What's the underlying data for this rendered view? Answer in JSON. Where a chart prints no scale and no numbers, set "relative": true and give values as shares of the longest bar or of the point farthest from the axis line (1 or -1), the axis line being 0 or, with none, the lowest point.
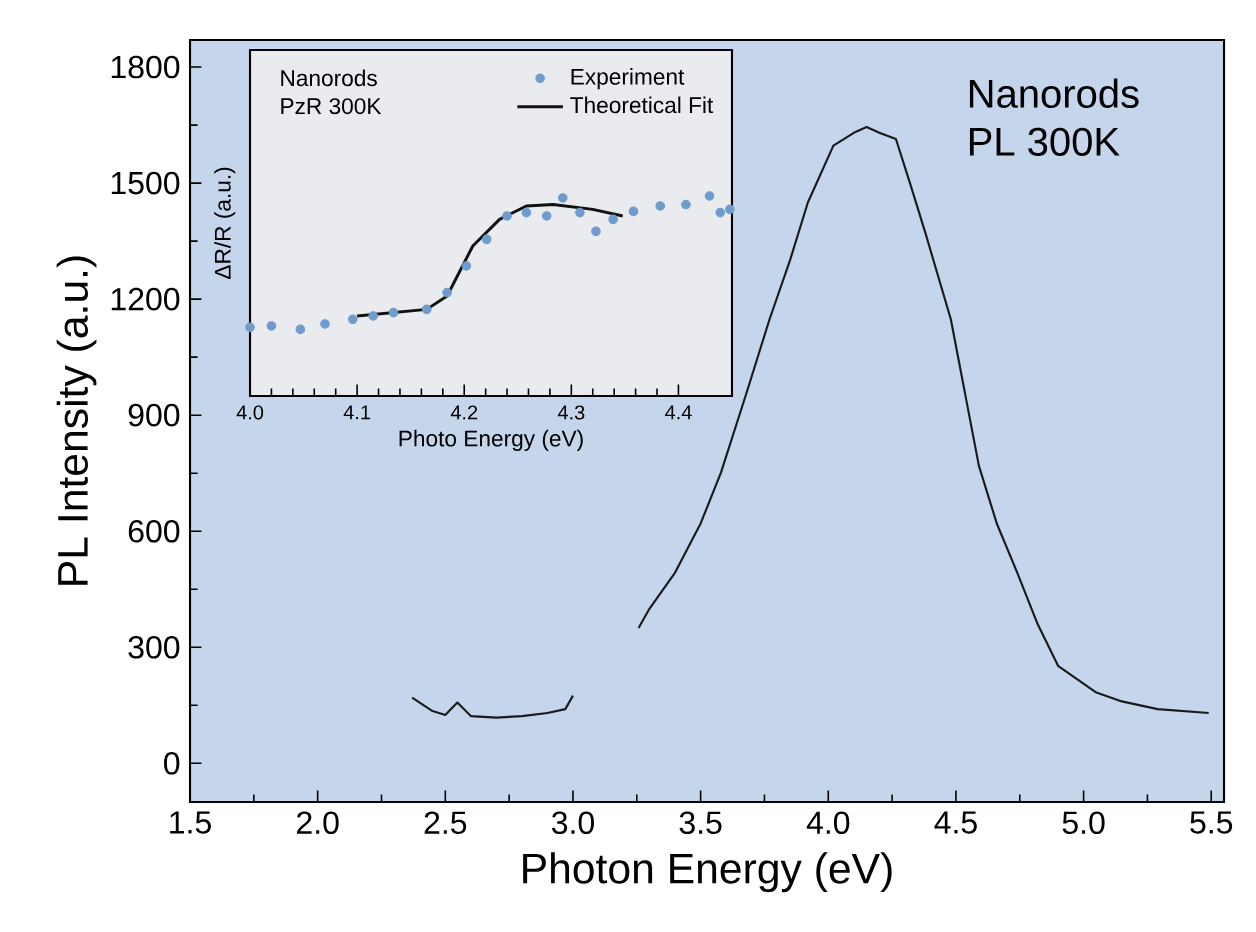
{
  "chart_data": [
    {
      "type": "line",
      "xlabel": "Photon Energy (eV)",
      "ylabel": "PL Intensity (a.u.)",
      "xlim": [
        1.5,
        5.55
      ],
      "ylim": [
        -100,
        1870
      ],
      "xticks": [
        {
          "value": 1.5,
          "label": "1.5"
        },
        {
          "value": 2,
          "label": "2.0"
        },
        {
          "value": 2.5,
          "label": "2.5"
        },
        {
          "value": 3,
          "label": "3.0"
        },
        {
          "value": 3.5,
          "label": "3.5"
        },
        {
          "value": 4,
          "label": "4.0"
        },
        {
          "value": 4.5,
          "label": "4.5"
        },
        {
          "value": 5,
          "label": "5.0"
        },
        {
          "value": 5.5,
          "label": "5.5"
        }
      ],
      "yticks": [
        0,
        300,
        600,
        900,
        1200,
        1500,
        1800
      ],
      "annotations": [
        "Nanorods",
        "PL 300K"
      ],
      "series": [
        {
          "color": "#1a1a1a",
          "x": [
            2.37,
            2.45,
            2.5,
            2.547,
            2.6,
            2.7,
            2.8,
            2.9,
            2.97,
            3.0,
            3.13,
            3.257,
            3.3,
            3.4,
            3.5,
            3.58,
            3.68,
            3.77,
            3.85,
            3.92,
            4.02,
            4.1,
            4.15,
            4.2,
            4.265,
            4.32,
            4.38,
            4.48,
            4.59,
            4.66,
            4.74,
            4.82,
            4.9,
            5.05,
            5.15,
            5.29,
            5.49
          ],
          "values": [
            170,
            135,
            125,
            157,
            122,
            118,
            122,
            130,
            140,
            175,
            null,
            350,
            400,
            493,
            620,
            752,
            958,
            1148,
            1300,
            1450,
            1597,
            1630,
            1645,
            1630,
            1614,
            1500,
            1372,
            1148,
            769,
            620,
            493,
            360,
            252,
            183,
            160,
            140,
            130
          ]
        }
      ]
    },
    {
      "type": "scatter",
      "xlabel": "Photo Energy (eV)",
      "ylabel": "ΔR/R (a.u.)",
      "relative": true,
      "xlim": [
        4.0,
        4.45
      ],
      "xticks": [
        {
          "value": 4.0,
          "label": "4.0"
        },
        {
          "value": 4.1,
          "label": "4.1"
        },
        {
          "value": 4.2,
          "label": "4.2"
        },
        {
          "value": 4.3,
          "label": "4.3"
        },
        {
          "value": 4.4,
          "label": "4.4"
        }
      ],
      "annotations": [
        "Nanorods",
        "PzR 300K"
      ],
      "legend": "top right",
      "marker": "circle",
      "series": [
        {
          "name": "Experiment",
          "type": "scatter",
          "color": "#6f9ccc",
          "x": [
            4.0,
            4.02,
            4.047,
            4.07,
            4.096,
            4.115,
            4.134,
            4.165,
            4.184,
            4.202,
            4.221,
            4.24,
            4.258,
            4.277,
            4.292,
            4.308,
            4.323,
            4.339,
            4.358,
            4.383,
            4.407,
            4.429,
            4.439,
            4.448
          ],
          "values": [
            0.343,
            0.35,
            0.333,
            0.36,
            0.383,
            0.4,
            0.417,
            0.433,
            0.517,
            0.65,
            0.783,
            0.9,
            0.917,
            0.9,
            0.99,
            0.917,
            0.823,
            0.883,
            0.923,
            0.95,
            0.957,
            1.0,
            0.917,
            0.933
          ]
        },
        {
          "name": "Theoretical Fit",
          "type": "line",
          "marker": "none",
          "color": "#111111",
          "x": [
            4.1,
            4.165,
            4.184,
            4.208,
            4.233,
            4.258,
            4.283,
            4.32,
            4.348
          ],
          "values": [
            0.4,
            0.433,
            0.5,
            0.75,
            0.883,
            0.95,
            0.957,
            0.933,
            0.9
          ]
        }
      ]
    }
  ]
}
